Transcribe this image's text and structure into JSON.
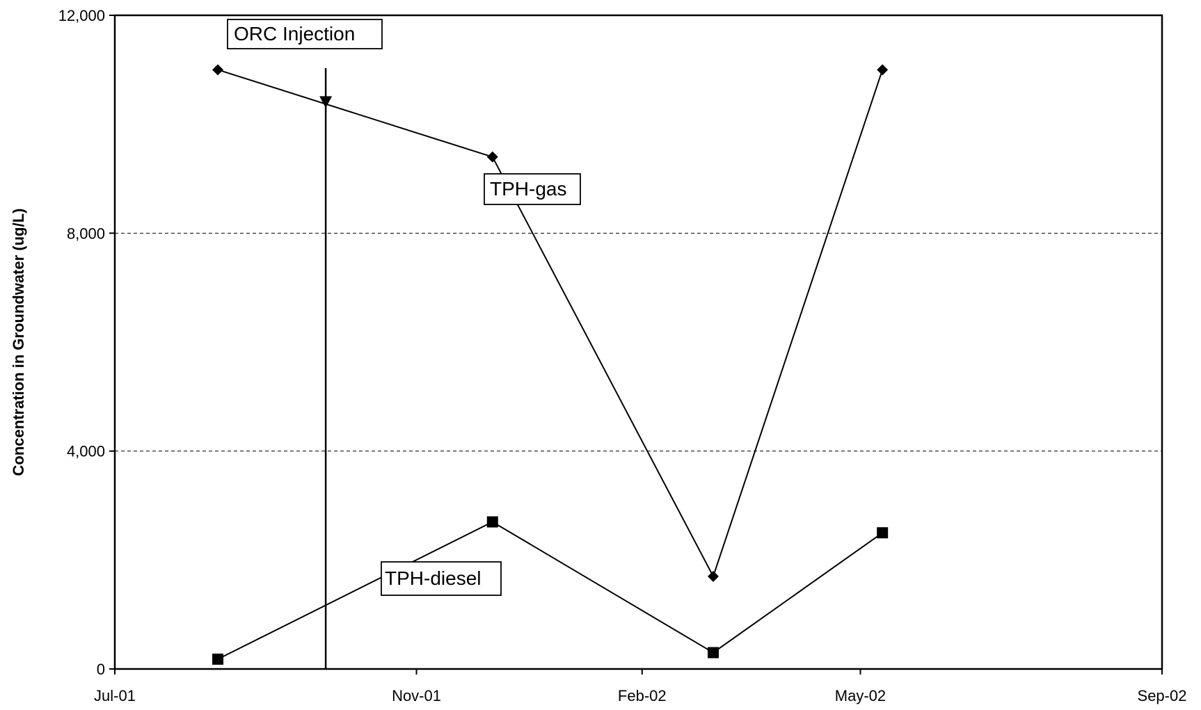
{
  "chart_data": {
    "type": "line",
    "title": "",
    "xlabel": "",
    "ylabel": "Concentration in Groundwater (ug/L)",
    "ylim": [
      0,
      12000
    ],
    "xlim": [
      "2001-07-01",
      "2002-09-01"
    ],
    "x_ticks": [
      {
        "date": "2001-07-01",
        "label": "Jul-01"
      },
      {
        "date": "2001-11-01",
        "label": "Nov-01"
      },
      {
        "date": "2002-02-01",
        "label": "Feb-02"
      },
      {
        "date": "2002-05-01",
        "label": "May-02"
      },
      {
        "date": "2002-09-01",
        "label": "Sep-02"
      }
    ],
    "y_ticks": [
      {
        "value": 0,
        "label": "0"
      },
      {
        "value": 4000,
        "label": "4,000"
      },
      {
        "value": 8000,
        "label": "8,000"
      },
      {
        "value": 12000,
        "label": "12,000"
      }
    ],
    "grid": "dashed horizontal at 4,000 and 8,000",
    "series": [
      {
        "name": "TPH-gas",
        "marker": "diamond",
        "color": "#000000",
        "points": [
          {
            "x": "2001-08-12",
            "y": 11000
          },
          {
            "x": "2001-12-02",
            "y": 9400
          },
          {
            "x": "2002-03-02",
            "y": 1700
          },
          {
            "x": "2002-05-10",
            "y": 11000
          }
        ]
      },
      {
        "name": "TPH-diesel",
        "marker": "square",
        "color": "#000000",
        "points": [
          {
            "x": "2001-08-12",
            "y": 180
          },
          {
            "x": "2001-12-02",
            "y": 2700
          },
          {
            "x": "2002-03-02",
            "y": 300
          },
          {
            "x": "2002-05-10",
            "y": 2500
          }
        ]
      }
    ],
    "annotations": [
      {
        "text": "ORC Injection",
        "type": "vertical-line",
        "x": "2001-09-25",
        "marker": "down-triangle",
        "marker_y": 10400
      },
      {
        "text": "TPH-gas",
        "type": "series-label",
        "series": "TPH-gas"
      },
      {
        "text": "TPH-diesel",
        "type": "series-label",
        "series": "TPH-diesel"
      }
    ]
  }
}
